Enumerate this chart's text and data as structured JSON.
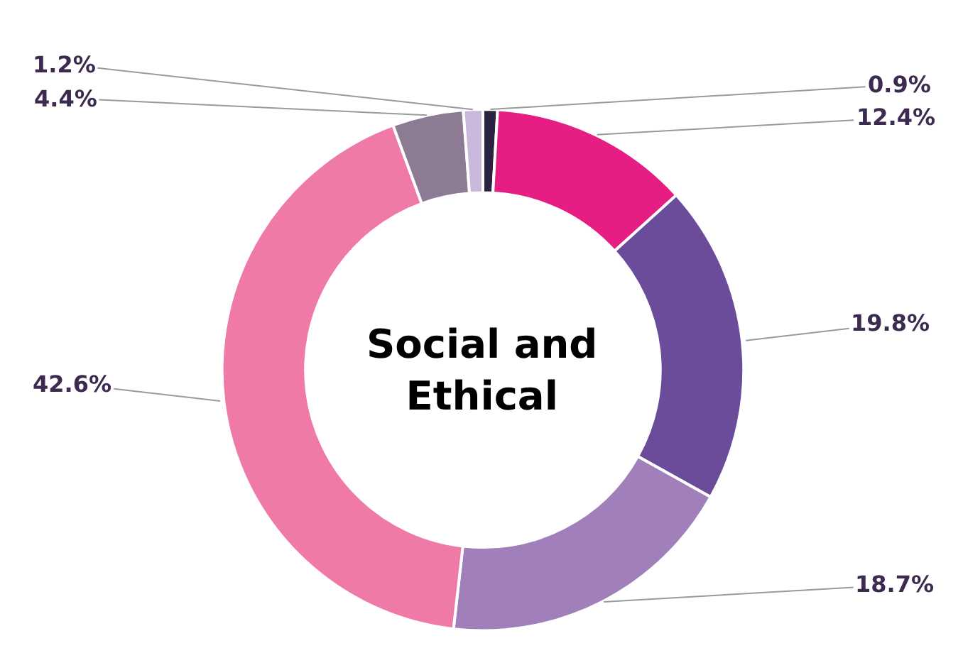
{
  "chart_data": {
    "type": "donut",
    "title": "Social and Ethical",
    "categories": [
      null,
      null,
      null,
      null,
      null,
      null,
      null
    ],
    "values": [
      0.9,
      12.4,
      19.8,
      18.7,
      42.6,
      4.4,
      1.2
    ],
    "value_labels": [
      "0.9%",
      "12.4%",
      "19.8%",
      "18.7%",
      "42.6%",
      "4.4%",
      "1.2%"
    ],
    "colors": [
      "#2b2140",
      "#e61e84",
      "#6b4c9a",
      "#a07fba",
      "#ef7aa8",
      "#8d7b93",
      "#c9b8dc"
    ],
    "legend": false
  }
}
